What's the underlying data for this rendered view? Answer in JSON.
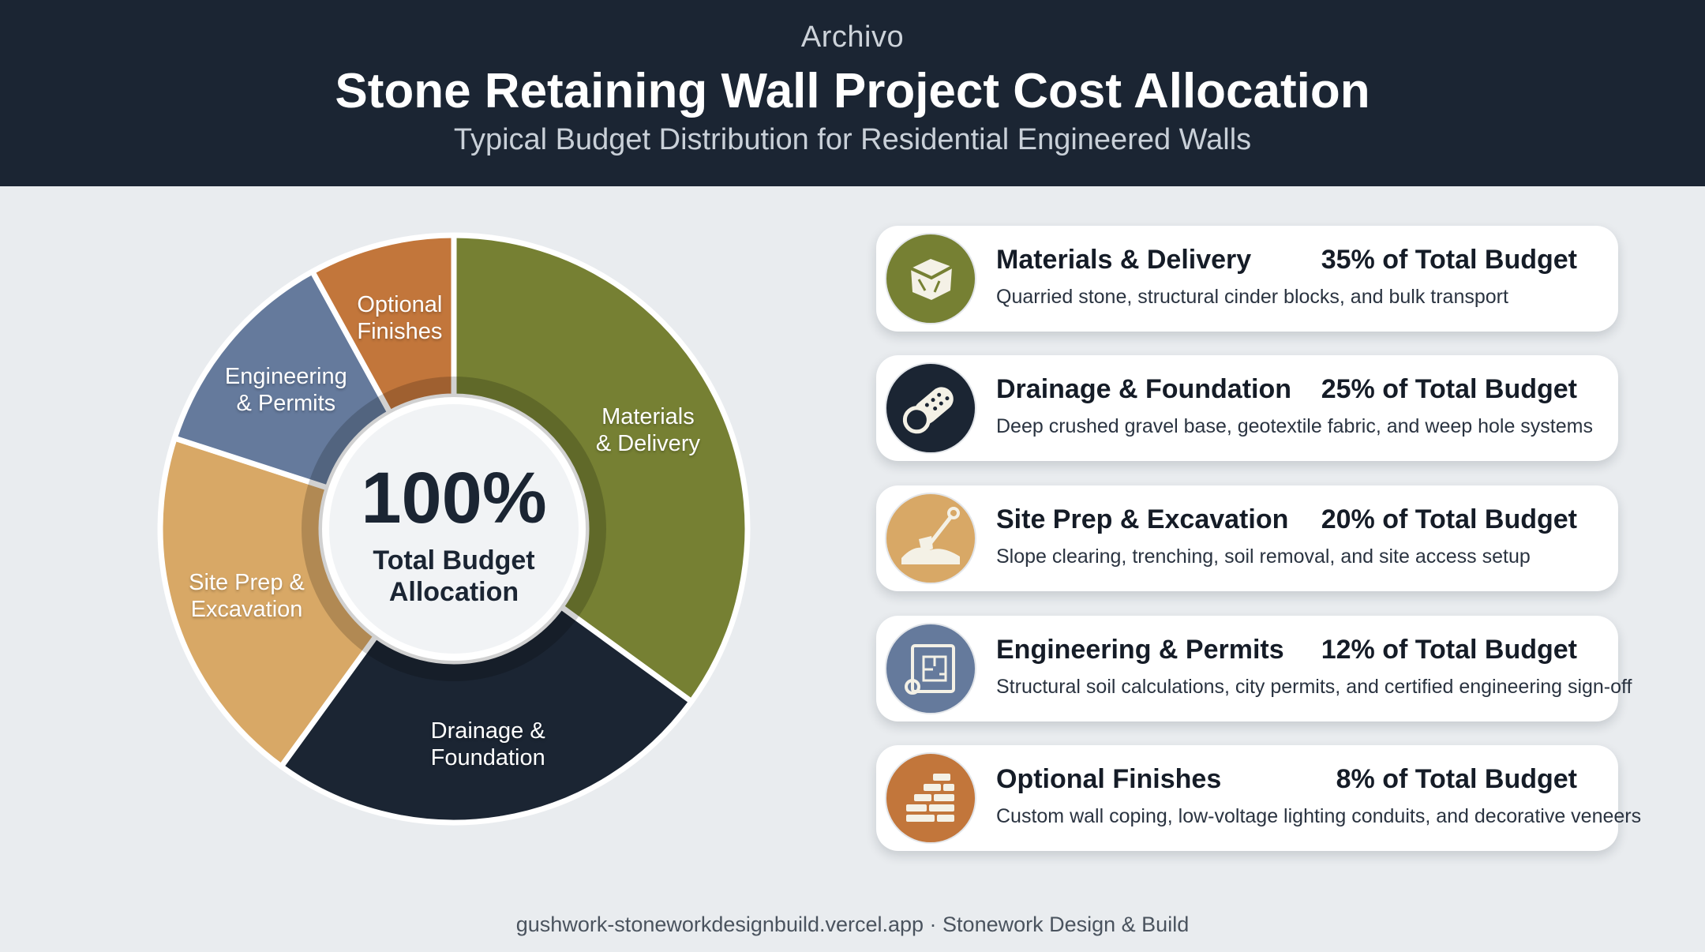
{
  "header": {
    "brand": "Archivo",
    "title": "Stone Retaining Wall Project Cost Allocation",
    "subtitle": "Typical Budget Distribution for Residential Engineered Walls"
  },
  "center": {
    "value": "100%",
    "line1": "Total Budget",
    "line2": "Allocation"
  },
  "chart_data": {
    "type": "pie",
    "title": "Stone Retaining Wall Project Cost Allocation",
    "subtitle": "Typical Budget Distribution for Residential Engineered Walls",
    "categories": [
      "Materials & Delivery",
      "Drainage & Foundation",
      "Site Prep & Excavation",
      "Engineering & Permits",
      "Optional Finishes"
    ],
    "values": [
      35,
      25,
      20,
      12,
      8
    ],
    "unit": "%",
    "donut": true,
    "colors": [
      "#768033",
      "#1b2533",
      "#d8a866",
      "#657a9c",
      "#c2763b"
    ],
    "slice_labels": [
      [
        "Materials",
        "& Delivery"
      ],
      [
        "Drainage &",
        "Foundation"
      ],
      [
        "Site Prep &",
        "Excavation"
      ],
      [
        "Engineering",
        "& Permits"
      ],
      [
        "Optional",
        "Finishes"
      ]
    ]
  },
  "cards": [
    {
      "title": "Materials & Delivery",
      "pct": "35% of Total Budget",
      "desc": "Quarried stone, structural cinder blocks, and bulk transport",
      "icon": "stone-block-icon",
      "color": "#768033"
    },
    {
      "title": "Drainage & Foundation",
      "pct": "25% of Total Budget",
      "desc": "Deep crushed gravel base, geotextile fabric, and weep hole systems",
      "icon": "drain-pipe-icon",
      "color": "#1b2533"
    },
    {
      "title": "Site Prep & Excavation",
      "pct": "20% of Total Budget",
      "desc": "Slope clearing, trenching, soil removal, and site access setup",
      "icon": "shovel-icon",
      "color": "#d8a866"
    },
    {
      "title": "Engineering & Permits",
      "pct": "12% of Total Budget",
      "desc": "Structural soil calculations, city permits, and certified engineering sign-off",
      "icon": "blueprint-icon",
      "color": "#657a9c"
    },
    {
      "title": "Optional Finishes",
      "pct": "8% of Total Budget",
      "desc": "Custom wall coping, low-voltage lighting conduits, and decorative veneers",
      "icon": "brick-wall-icon",
      "color": "#c2763b"
    }
  ],
  "footer": "gushwork-stoneworkdesignbuild.vercel.app · Stonework Design & Build"
}
